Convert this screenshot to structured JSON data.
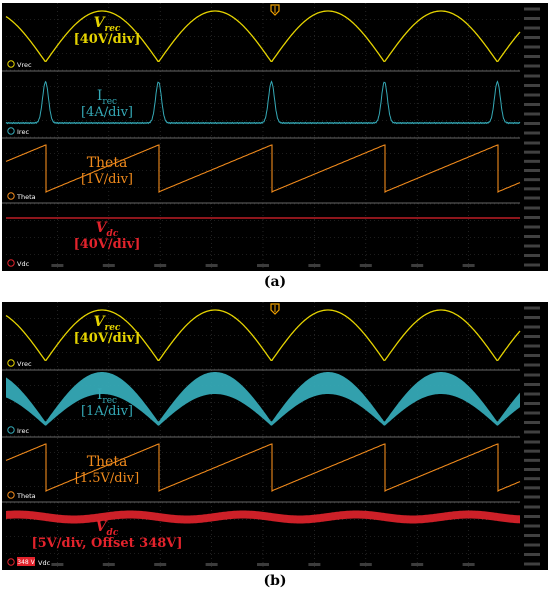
{
  "panels": [
    {
      "caption": "(a)",
      "channels": [
        {
          "id": "vrec",
          "ch_label": "Vrec",
          "name_main": "V",
          "name_sub": "rec",
          "scale": "[40V/div]",
          "color": "#e6d400",
          "wave": "rectified_sine",
          "italic": true
        },
        {
          "id": "irec",
          "ch_label": "Irec",
          "name_main": "I",
          "name_sub": "rec",
          "scale": "[4A/div]",
          "color": "#35a9b6",
          "wave": "pulses",
          "italic": false
        },
        {
          "id": "theta",
          "ch_label": "Theta",
          "name_main": "Theta",
          "name_sub": "",
          "scale": "[1V/div]",
          "color": "#f08a1c",
          "wave": "sawtooth",
          "italic": false
        },
        {
          "id": "vdc",
          "ch_label": "Vdc",
          "name_main": "V",
          "name_sub": "dc",
          "scale": "[40V/div]",
          "color": "#e3232c",
          "wave": "flat",
          "italic": true
        }
      ]
    },
    {
      "caption": "(b)",
      "channels": [
        {
          "id": "vrec",
          "ch_label": "Vrec",
          "name_main": "V",
          "name_sub": "rec",
          "scale": "[40V/div]",
          "color": "#e6d400",
          "wave": "rectified_sine",
          "italic": true
        },
        {
          "id": "irec",
          "ch_label": "Irec",
          "name_main": "I",
          "name_sub": "rec",
          "scale": "[1A/div]",
          "color": "#35a9b6",
          "wave": "noisy_band",
          "italic": false
        },
        {
          "id": "theta",
          "ch_label": "Theta",
          "name_main": "Theta",
          "name_sub": "",
          "scale": "[1.5V/div]",
          "color": "#f08a1c",
          "wave": "sawtooth",
          "italic": false
        },
        {
          "id": "vdc",
          "ch_label": "Vdc",
          "name_main": "V",
          "name_sub": "dc",
          "scale": "[5V/div, Offset 348V]",
          "color": "#e3232c",
          "wave": "ripple_band",
          "italic": true,
          "badge": "348 V"
        }
      ]
    }
  ],
  "colors": {
    "grid": "#3a3a3a",
    "separator": "#666666",
    "background": "#000000",
    "trigger_marker": "#f0a000"
  }
}
